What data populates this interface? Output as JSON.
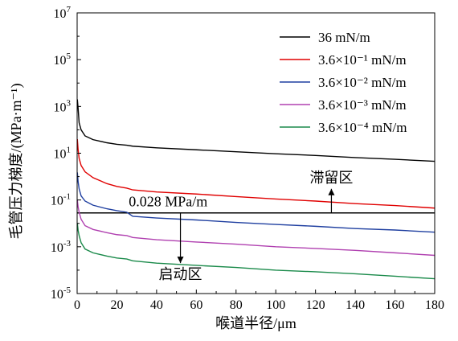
{
  "chart_data": {
    "type": "line",
    "xlabel": "喉道半径/μm",
    "ylabel": "毛管压力梯度/(MPa·m⁻¹)",
    "xlim": [
      0,
      180
    ],
    "ylim": [
      1e-05,
      10000000
    ],
    "yscale": "log",
    "x_ticks": [
      0,
      20,
      40,
      60,
      80,
      100,
      120,
      140,
      160,
      180
    ],
    "y_ticks": [
      {
        "value": 1e-05,
        "base": "10",
        "exp": "-5"
      },
      {
        "value": 0.001,
        "base": "10",
        "exp": "-3"
      },
      {
        "value": 0.1,
        "base": "10",
        "exp": "-1"
      },
      {
        "value": 10,
        "base": "10",
        "exp": "1"
      },
      {
        "value": 1000,
        "base": "10",
        "exp": "3"
      },
      {
        "value": 100000,
        "base": "10",
        "exp": "5"
      },
      {
        "value": 10000000,
        "base": "10",
        "exp": "7"
      }
    ],
    "grid": false,
    "legend_position": "top-right",
    "series": [
      {
        "name": "36 mN/m",
        "color": "#000000",
        "points": [
          [
            0.1,
            2000
          ],
          [
            0.5,
            800
          ],
          [
            1,
            200
          ],
          [
            2,
            100
          ],
          [
            4,
            55
          ],
          [
            8,
            38
          ],
          [
            15,
            28
          ],
          [
            20,
            24
          ],
          [
            25,
            22
          ],
          [
            28,
            20
          ],
          [
            40,
            17
          ],
          [
            60,
            14
          ],
          [
            80,
            11.5
          ],
          [
            100,
            9.5
          ],
          [
            120,
            8
          ],
          [
            140,
            6.5
          ],
          [
            160,
            5.5
          ],
          [
            180,
            4.5
          ]
        ]
      },
      {
        "name": "3.6×10⁻¹ mN/m",
        "color": "#e00000",
        "points": [
          [
            0.1,
            40
          ],
          [
            0.5,
            14
          ],
          [
            1,
            6
          ],
          [
            2,
            3
          ],
          [
            4,
            1.6
          ],
          [
            8,
            0.9
          ],
          [
            15,
            0.5
          ],
          [
            20,
            0.38
          ],
          [
            25,
            0.32
          ],
          [
            28,
            0.27
          ],
          [
            40,
            0.22
          ],
          [
            60,
            0.18
          ],
          [
            80,
            0.14
          ],
          [
            100,
            0.11
          ],
          [
            120,
            0.09
          ],
          [
            140,
            0.07
          ],
          [
            160,
            0.058
          ],
          [
            180,
            0.045
          ]
        ]
      },
      {
        "name": "3.6×10⁻² mN/m",
        "color": "#1f3fa0",
        "points": [
          [
            0.1,
            1.5
          ],
          [
            0.5,
            0.6
          ],
          [
            1,
            0.3
          ],
          [
            2,
            0.15
          ],
          [
            4,
            0.09
          ],
          [
            8,
            0.06
          ],
          [
            15,
            0.042
          ],
          [
            20,
            0.035
          ],
          [
            25,
            0.03
          ],
          [
            28,
            0.02
          ],
          [
            40,
            0.017
          ],
          [
            60,
            0.014
          ],
          [
            80,
            0.011
          ],
          [
            100,
            0.009
          ],
          [
            120,
            0.0075
          ],
          [
            140,
            0.006
          ],
          [
            160,
            0.0052
          ],
          [
            180,
            0.0042
          ]
        ]
      },
      {
        "name": "3.6×10⁻³ mN/m",
        "color": "#b040b0",
        "points": [
          [
            0.1,
            0.1
          ],
          [
            0.5,
            0.05
          ],
          [
            1,
            0.03
          ],
          [
            2,
            0.015
          ],
          [
            4,
            0.008
          ],
          [
            8,
            0.0055
          ],
          [
            15,
            0.004
          ],
          [
            20,
            0.0033
          ],
          [
            25,
            0.003
          ],
          [
            28,
            0.0025
          ],
          [
            40,
            0.002
          ],
          [
            60,
            0.0016
          ],
          [
            80,
            0.0013
          ],
          [
            100,
            0.001
          ],
          [
            120,
            0.00085
          ],
          [
            140,
            0.0007
          ],
          [
            160,
            0.00055
          ],
          [
            180,
            0.00043
          ]
        ]
      },
      {
        "name": "3.6×10⁻⁴ mN/m",
        "color": "#1a8a4a",
        "points": [
          [
            0.1,
            0.01
          ],
          [
            0.5,
            0.005
          ],
          [
            1,
            0.003
          ],
          [
            2,
            0.0015
          ],
          [
            4,
            0.0008
          ],
          [
            8,
            0.00055
          ],
          [
            15,
            0.0004
          ],
          [
            20,
            0.00033
          ],
          [
            25,
            0.0003
          ],
          [
            28,
            0.00025
          ],
          [
            40,
            0.0002
          ],
          [
            60,
            0.00016
          ],
          [
            80,
            0.00013
          ],
          [
            100,
            0.0001
          ],
          [
            120,
            8.5e-05
          ],
          [
            140,
            7e-05
          ],
          [
            160,
            5.5e-05
          ],
          [
            180,
            4.3e-05
          ]
        ]
      }
    ],
    "reference_line": {
      "label": "0.028 MPa/m",
      "value": 0.028,
      "color": "#000000"
    },
    "annotations": [
      {
        "label": "滞留区",
        "x": 128,
        "y": 0.028,
        "arrow": "up",
        "arrow_to_y": 0.3
      },
      {
        "label": "启动区",
        "x": 52,
        "y": 0.028,
        "arrow": "down",
        "arrow_to_y": 0.0002
      }
    ]
  }
}
